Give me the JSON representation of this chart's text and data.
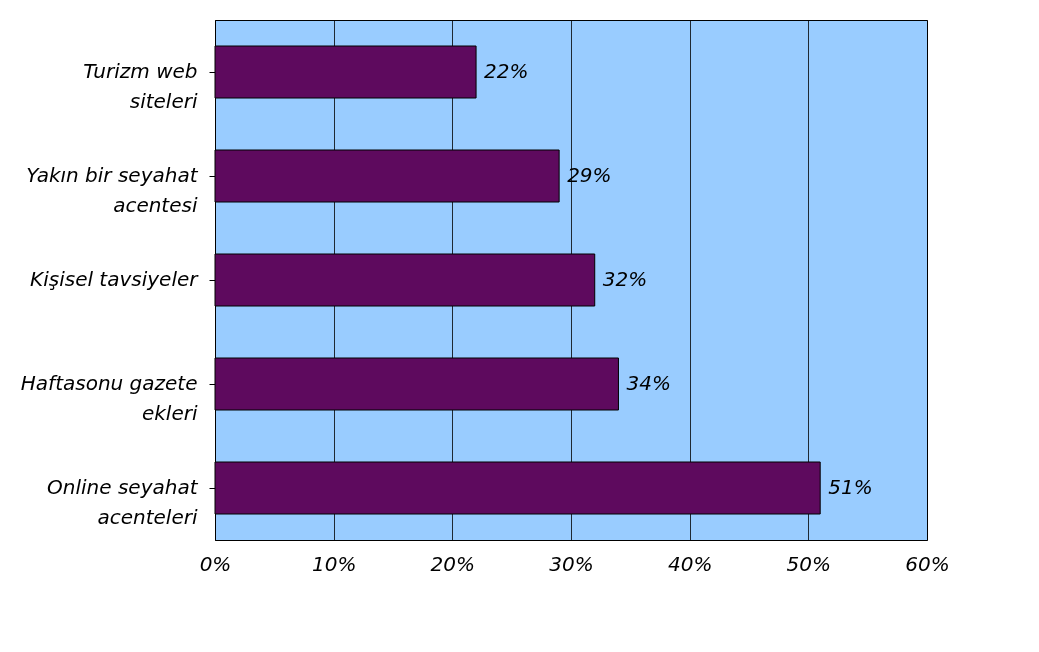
{
  "chart_data": {
    "type": "bar",
    "orientation": "horizontal",
    "categories": [
      "Turizm web siteleri",
      "Yakın bir seyahat acentesi",
      "Kişisel tavsiyeler",
      "Haftasonu gazete ekleri",
      "Online seyahat acenteleri"
    ],
    "values": [
      22,
      29,
      32,
      34,
      51
    ],
    "value_labels": [
      "22%",
      "29%",
      "32%",
      "34%",
      "51%"
    ],
    "color": "#5e0a5e",
    "xlim": [
      0,
      60
    ],
    "xticks": [
      {
        "value": 0,
        "label": "0%"
      },
      {
        "value": 10,
        "label": "10%"
      },
      {
        "value": 20,
        "label": "20%"
      },
      {
        "value": 30,
        "label": "30%"
      },
      {
        "value": 40,
        "label": "40%"
      },
      {
        "value": 50,
        "label": "50%"
      },
      {
        "value": 60,
        "label": "60%"
      }
    ],
    "grid": "x"
  }
}
